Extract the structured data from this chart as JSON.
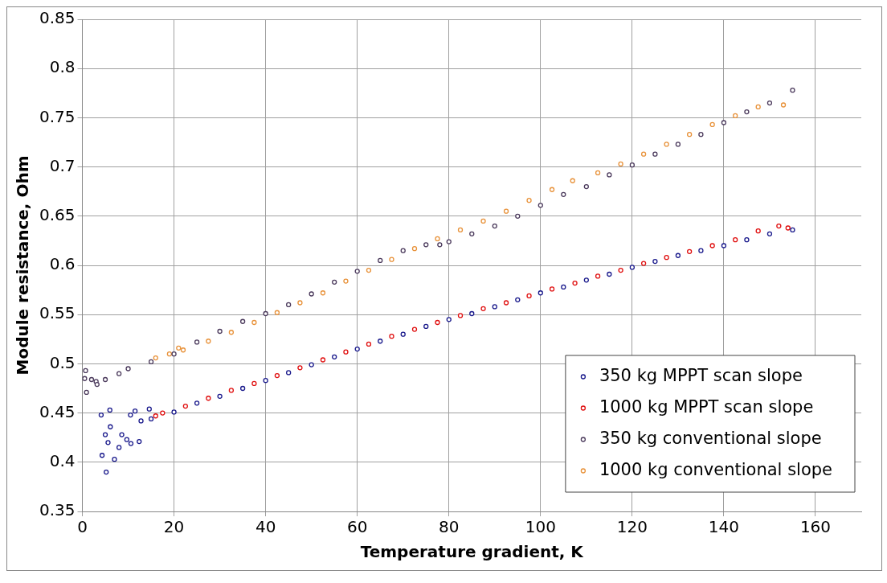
{
  "chart_data": {
    "type": "scatter",
    "xlabel": "Temperature gradient, K",
    "ylabel": "Module resistance, Ohm",
    "xlim": [
      0,
      170
    ],
    "xticks": [
      0,
      20,
      40,
      60,
      80,
      100,
      120,
      140,
      160
    ],
    "ylim": [
      0.35,
      0.85
    ],
    "yticks": [
      0.35,
      0.4,
      0.45,
      0.5,
      0.55,
      0.6,
      0.65,
      0.7,
      0.75,
      0.8,
      0.85
    ],
    "grid": true,
    "legend": "bottom right",
    "marker": "circle",
    "series": [
      {
        "name": "350 kg MPPT scan slope",
        "color": "#1a1a8c",
        "x": [
          4.1,
          4.3,
          5,
          5.2,
          5.6,
          6,
          6.1,
          7,
          8,
          8.6,
          9.7,
          10.5,
          10.6,
          11.5,
          12.4,
          12.8,
          14.6,
          15,
          20,
          25,
          30,
          35,
          40,
          45,
          50,
          55,
          60,
          65,
          70,
          75,
          80,
          85,
          90,
          95,
          100,
          105,
          110,
          115,
          120,
          125,
          130,
          135,
          140,
          145,
          150,
          155
        ],
        "values": [
          0.448,
          0.407,
          0.428,
          0.39,
          0.42,
          0.453,
          0.436,
          0.403,
          0.415,
          0.428,
          0.423,
          0.448,
          0.419,
          0.452,
          0.421,
          0.442,
          0.454,
          0.444,
          0.451,
          0.46,
          0.467,
          0.475,
          0.483,
          0.491,
          0.499,
          0.507,
          0.515,
          0.523,
          0.53,
          0.538,
          0.545,
          0.551,
          0.558,
          0.565,
          0.572,
          0.578,
          0.585,
          0.591,
          0.598,
          0.604,
          0.61,
          0.615,
          0.62,
          0.626,
          0.632,
          0.636
        ]
      },
      {
        "name": "1000 kg MPPT scan slope",
        "color": "#e01010",
        "x": [
          16,
          17.5,
          22.5,
          27.5,
          32.5,
          37.5,
          42.5,
          47.5,
          52.5,
          57.5,
          62.5,
          67.5,
          72.5,
          77.5,
          82.5,
          87.5,
          92.5,
          97.5,
          102.5,
          107.5,
          112.5,
          117.5,
          122.5,
          127.5,
          132.5,
          137.5,
          142.5,
          147.5,
          152,
          154
        ],
        "values": [
          0.447,
          0.45,
          0.457,
          0.465,
          0.473,
          0.48,
          0.488,
          0.496,
          0.504,
          0.512,
          0.52,
          0.528,
          0.535,
          0.542,
          0.549,
          0.556,
          0.562,
          0.569,
          0.576,
          0.582,
          0.589,
          0.595,
          0.602,
          0.608,
          0.614,
          0.62,
          0.626,
          0.635,
          0.64,
          0.638
        ]
      },
      {
        "name": "350 kg conventional slope",
        "color": "#4b3a5c",
        "x": [
          0.5,
          0.7,
          0.9,
          2,
          3,
          3.2,
          5,
          8,
          10,
          15,
          20,
          25,
          30,
          35,
          40,
          45,
          50,
          55,
          60,
          65,
          70,
          75,
          78,
          80,
          85,
          90,
          95,
          100,
          105,
          110,
          115,
          120,
          125,
          130,
          135,
          140,
          145,
          150,
          155
        ],
        "values": [
          0.485,
          0.493,
          0.471,
          0.484,
          0.482,
          0.479,
          0.484,
          0.49,
          0.495,
          0.502,
          0.51,
          0.522,
          0.533,
          0.543,
          0.551,
          0.56,
          0.571,
          0.583,
          0.594,
          0.605,
          0.615,
          0.621,
          0.621,
          0.624,
          0.632,
          0.64,
          0.65,
          0.661,
          0.672,
          0.68,
          0.692,
          0.702,
          0.713,
          0.723,
          0.733,
          0.745,
          0.756,
          0.765,
          0.778
        ]
      },
      {
        "name": "1000 kg conventional slope",
        "color": "#e8923a",
        "x": [
          16,
          19,
          21,
          22,
          27.5,
          32.5,
          37.5,
          42.5,
          47.5,
          52.5,
          57.5,
          62.5,
          67.5,
          72.5,
          77.5,
          82.5,
          87.5,
          92.5,
          97.5,
          102.5,
          107,
          112.5,
          117.5,
          122.5,
          127.5,
          132.5,
          137.5,
          142.5,
          147.5,
          153
        ],
        "values": [
          0.506,
          0.51,
          0.516,
          0.514,
          0.523,
          0.532,
          0.542,
          0.552,
          0.562,
          0.572,
          0.584,
          0.595,
          0.606,
          0.617,
          0.627,
          0.636,
          0.645,
          0.655,
          0.666,
          0.677,
          0.686,
          0.694,
          0.703,
          0.713,
          0.723,
          0.733,
          0.743,
          0.752,
          0.761,
          0.763
        ]
      }
    ]
  }
}
